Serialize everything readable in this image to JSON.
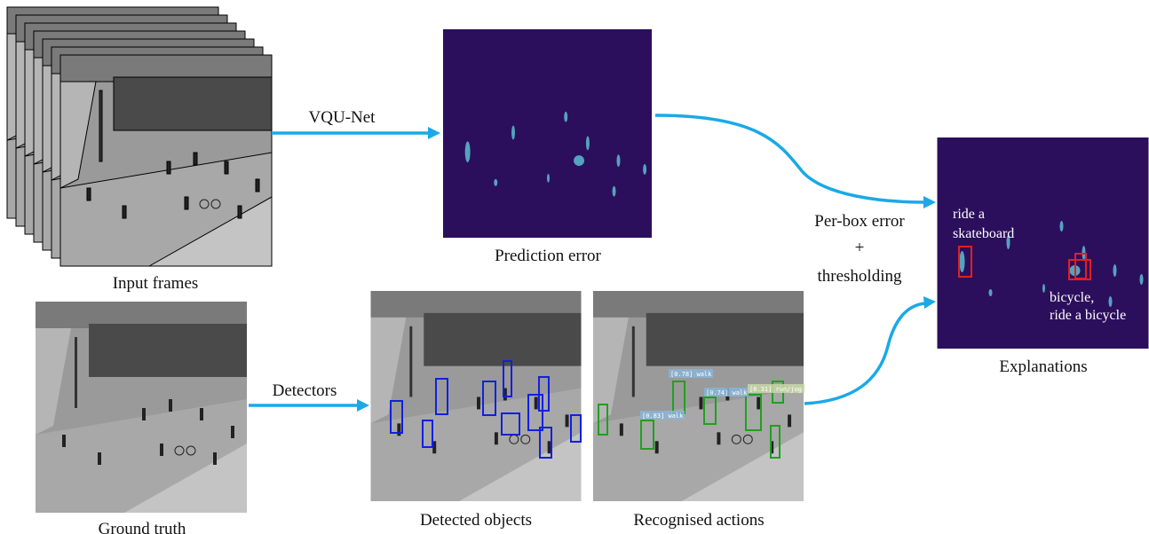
{
  "input_frames": {
    "label": "Input frames"
  },
  "arrow_vqu": {
    "label": "VQU-Net"
  },
  "prediction_error": {
    "label": "Prediction error"
  },
  "ground_truth": {
    "label": "Ground truth"
  },
  "arrow_detectors": {
    "label": "Detectors"
  },
  "detected_objects": {
    "label": "Detected objects"
  },
  "recognised_actions": {
    "label": "Recognised actions",
    "tags": [
      "[0.78] walk",
      "[0.74] walk",
      "[0.31] run/jog",
      "[0.83] walk"
    ]
  },
  "fusion": {
    "lines": [
      "Per-box error",
      "+",
      "thresholding"
    ]
  },
  "explanations": {
    "label": "Explanations",
    "annotations": [
      [
        "ride a",
        "skateboard"
      ],
      [
        "bicycle,",
        "ride a bicycle"
      ]
    ]
  }
}
